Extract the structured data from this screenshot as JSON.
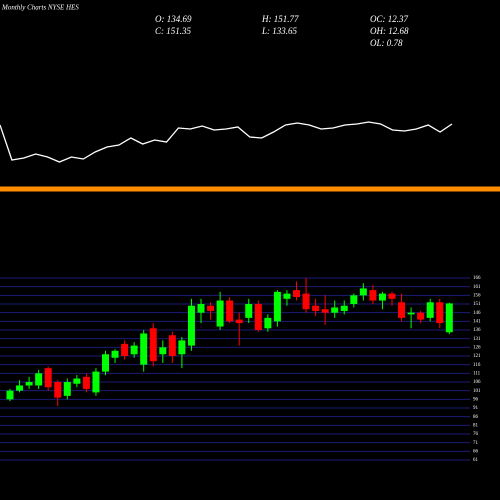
{
  "chart_data": {
    "type": "candlestick",
    "title": "Monthly Charts NYSE HES",
    "stats": [
      [
        "O: 134.69",
        "H: 151.77",
        "OC: 12.37"
      ],
      [
        "C: 151.35",
        "L: 133.65",
        "OH: 12.68",
        "OL: 0.78"
      ]
    ],
    "indicator": {
      "color": "#ffffff",
      "ylim": [
        0,
        200
      ],
      "values": [
        75,
        40,
        42,
        46,
        43,
        38,
        43,
        41,
        48,
        53,
        55,
        62,
        56,
        60,
        58,
        72,
        71,
        74,
        70,
        71,
        73,
        63,
        62,
        68,
        75,
        77,
        75,
        71,
        72,
        75,
        76,
        78,
        76,
        70,
        69,
        71,
        75,
        68,
        76
      ]
    },
    "up_color": "#00ff00",
    "down_color": "#ff0000",
    "open": [
      96,
      101,
      104,
      104,
      114,
      106,
      98,
      105,
      109,
      100,
      112,
      120,
      128,
      122,
      116,
      137,
      122,
      133,
      122,
      127,
      146,
      150,
      138,
      153,
      142,
      143,
      151,
      137,
      141,
      154,
      159,
      157,
      150,
      148,
      146,
      147,
      151,
      156,
      159,
      153,
      157,
      152,
      145,
      146,
      143,
      152,
      134.69
    ],
    "high": [
      102,
      107,
      109,
      113,
      115,
      107,
      108,
      110,
      111,
      114,
      124,
      125,
      130,
      129,
      136,
      140,
      130,
      135,
      132,
      154,
      154,
      152,
      158,
      155,
      146,
      154,
      153,
      145,
      159,
      159,
      164,
      166,
      154,
      156,
      153,
      153,
      157,
      163,
      162,
      158,
      158,
      157,
      149,
      147,
      154,
      154,
      151.77
    ],
    "low": [
      95,
      100,
      102,
      102,
      101,
      92,
      96,
      103,
      100,
      98,
      110,
      117,
      119,
      120,
      112,
      115,
      117,
      117,
      114,
      124,
      140,
      142,
      136,
      140,
      127,
      140,
      135,
      135,
      138,
      150,
      153,
      146,
      144,
      139,
      143,
      145,
      149,
      153,
      151,
      148,
      150,
      141,
      137,
      140,
      141,
      137,
      133.65
    ],
    "close": [
      101,
      104,
      106,
      111,
      103,
      97,
      106,
      108,
      102,
      112,
      122,
      124,
      121,
      127,
      134,
      118,
      126,
      121,
      130,
      150,
      151,
      147,
      153,
      141,
      140,
      151,
      136,
      143,
      158,
      157,
      155,
      148,
      147,
      146,
      149,
      150,
      156,
      160,
      153,
      157,
      154,
      143,
      146,
      142,
      152,
      140,
      151.35
    ],
    "ylim": [
      61,
      166
    ],
    "yticks": [
      61,
      66,
      71,
      76,
      81,
      86,
      91,
      96,
      101,
      106,
      111,
      116,
      121,
      126,
      131,
      136,
      141,
      146,
      151,
      156,
      161,
      166
    ],
    "grid": true,
    "grid_color": "#1c1c78"
  }
}
